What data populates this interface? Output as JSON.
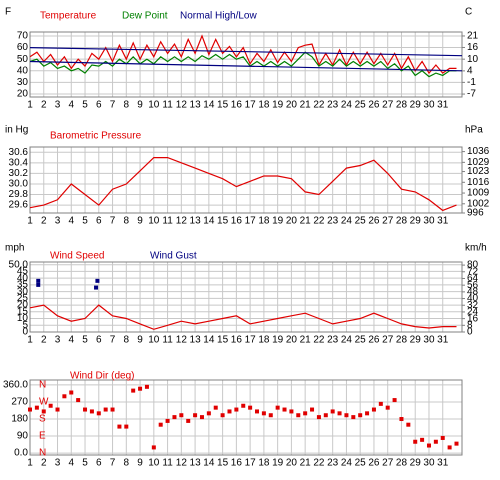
{
  "chart_data": [
    {
      "type": "line",
      "y_unit": "F",
      "y2_unit": "C",
      "xlim": [
        1,
        32.4
      ],
      "xticks": [
        1,
        2,
        3,
        4,
        5,
        6,
        7,
        8,
        9,
        10,
        11,
        12,
        13,
        14,
        15,
        16,
        17,
        18,
        19,
        20,
        21,
        22,
        23,
        24,
        25,
        26,
        27,
        28,
        29,
        30,
        31
      ],
      "ylim": [
        17.4,
        73.4
      ],
      "yticks": [
        20,
        30,
        40,
        50,
        60,
        70
      ],
      "y2lim": [
        -8.1,
        23.0
      ],
      "y2ticks": [
        {
          "value": -6.7,
          "label": "-7"
        },
        {
          "value": -1.1,
          "label": "-1"
        },
        {
          "value": 4.4,
          "label": "4"
        },
        {
          "value": 10,
          "label": "10"
        },
        {
          "value": 15.6,
          "label": "16"
        },
        {
          "value": 21.1,
          "label": "21"
        }
      ],
      "grid": true,
      "series": [
        {
          "name": "Temperature",
          "color": "#e00000",
          "x": [
            1,
            1.5,
            2,
            2.5,
            3,
            3.5,
            4,
            4.5,
            5,
            5.5,
            6,
            6.5,
            7,
            7.5,
            8,
            8.5,
            9,
            9.5,
            10,
            10.5,
            11,
            11.5,
            12,
            12.5,
            13,
            13.5,
            14,
            14.5,
            15,
            15.5,
            16,
            16.5,
            17,
            17.5,
            18,
            18.5,
            19,
            19.5,
            20,
            20.5,
            21,
            21.5,
            22,
            22.5,
            23,
            23.5,
            24,
            24.5,
            25,
            25.5,
            26,
            26.5,
            27,
            27.5,
            28,
            28.5,
            29,
            29.5,
            30,
            30.5,
            31,
            31.5,
            32
          ],
          "values": [
            52,
            56,
            48,
            54,
            45,
            52,
            42,
            50,
            44,
            55,
            50,
            60,
            48,
            62,
            50,
            64,
            50,
            62,
            52,
            65,
            55,
            63,
            52,
            67,
            55,
            70,
            54,
            67,
            55,
            61,
            52,
            60,
            46,
            55,
            48,
            58,
            47,
            56,
            48,
            60,
            62,
            63,
            45,
            55,
            45,
            58,
            45,
            56,
            46,
            56,
            46,
            55,
            45,
            55,
            42,
            52,
            40,
            48,
            38,
            45,
            38,
            42,
            42
          ]
        },
        {
          "name": "Dew Point",
          "color": "#008000",
          "x": [
            1,
            1.5,
            2,
            2.5,
            3,
            3.5,
            4,
            4.5,
            5,
            5.5,
            6,
            6.5,
            7,
            7.5,
            8,
            8.5,
            9,
            9.5,
            10,
            10.5,
            11,
            11.5,
            12,
            12.5,
            13,
            13.5,
            14,
            14.5,
            15,
            15.5,
            16,
            16.5,
            17,
            17.5,
            18,
            18.5,
            19,
            19.5,
            20,
            20.5,
            21,
            21.5,
            22,
            22.5,
            23,
            23.5,
            24,
            24.5,
            25,
            25.5,
            26,
            26.5,
            27,
            27.5,
            28,
            28.5,
            29,
            29.5,
            30,
            30.5,
            31,
            31.5,
            32
          ],
          "values": [
            48,
            50,
            44,
            47,
            42,
            44,
            40,
            42,
            38,
            45,
            44,
            48,
            44,
            50,
            46,
            52,
            46,
            50,
            46,
            52,
            48,
            52,
            48,
            52,
            48,
            53,
            50,
            54,
            50,
            54,
            50,
            52,
            44,
            48,
            44,
            48,
            44,
            48,
            44,
            50,
            56,
            52,
            44,
            48,
            44,
            50,
            44,
            48,
            44,
            48,
            44,
            48,
            42,
            46,
            40,
            44,
            36,
            40,
            35,
            38,
            36,
            40,
            40
          ]
        },
        {
          "name": "Normal High/Low",
          "color": "#000080",
          "x": [
            1,
            32.4
          ],
          "values": [
            60,
            53
          ],
          "low": [
            48,
            40
          ]
        }
      ]
    },
    {
      "type": "line",
      "y_unit": "in Hg",
      "y2_unit": "hPa",
      "xlim": [
        1,
        32.4
      ],
      "xticks": [
        1,
        2,
        3,
        4,
        5,
        6,
        7,
        8,
        9,
        10,
        11,
        12,
        13,
        14,
        15,
        16,
        17,
        18,
        19,
        20,
        21,
        22,
        23,
        24,
        25,
        26,
        27,
        28,
        29,
        30,
        31
      ],
      "ylim": [
        29.45,
        30.7
      ],
      "yticks": [
        29.6,
        29.8,
        {
          "value": 30,
          "label": "30.0"
        },
        30.2,
        30.4,
        30.6
      ],
      "y2lim": [
        996,
        1039
      ],
      "y2ticks": [
        996,
        1002,
        1009,
        1016,
        1023,
        1029,
        1036
      ],
      "grid": true,
      "series": [
        {
          "name": "Barometric Pressure",
          "color": "#e00000",
          "x": [
            1,
            2,
            3,
            4,
            5,
            6,
            7,
            8,
            9,
            10,
            11,
            12,
            13,
            14,
            15,
            16,
            17,
            18,
            19,
            20,
            21,
            22,
            23,
            24,
            25,
            26,
            27,
            28,
            29,
            30,
            31,
            32
          ],
          "values": [
            29.55,
            29.6,
            29.7,
            30.0,
            29.8,
            29.6,
            29.9,
            30.0,
            30.25,
            30.5,
            30.5,
            30.4,
            30.3,
            30.2,
            30.1,
            29.95,
            30.05,
            30.15,
            30.15,
            30.1,
            29.85,
            29.8,
            30.05,
            30.3,
            30.35,
            30.45,
            30.2,
            29.9,
            29.85,
            29.7,
            29.5,
            29.6
          ]
        }
      ]
    },
    {
      "type": "line",
      "y_unit": "mph",
      "y2_unit": "km/h",
      "xlim": [
        1,
        32.4
      ],
      "xticks": [
        1,
        2,
        3,
        4,
        5,
        6,
        7,
        8,
        9,
        10,
        11,
        12,
        13,
        14,
        15,
        16,
        17,
        18,
        19,
        20,
        21,
        22,
        23,
        24,
        25,
        26,
        27,
        28,
        29,
        30,
        31
      ],
      "ylim": [
        0,
        52
      ],
      "yticks": [
        0,
        5,
        10,
        15,
        20,
        25,
        30,
        35,
        40,
        45,
        {
          "value": 50,
          "label": "50.0"
        }
      ],
      "y2lim": [
        0,
        83.7
      ],
      "y2ticks": [
        0,
        8,
        16,
        24,
        32,
        40,
        48,
        56,
        64,
        72,
        80
      ],
      "grid": true,
      "series": [
        {
          "name": "Wind Speed",
          "color": "#e00000",
          "x": [
            1,
            2,
            3,
            4,
            5,
            6,
            7,
            8,
            9,
            10,
            11,
            12,
            13,
            14,
            15,
            16,
            17,
            18,
            19,
            20,
            21,
            22,
            23,
            24,
            25,
            26,
            27,
            28,
            29,
            30,
            31,
            32
          ],
          "values": [
            18,
            20,
            12,
            8,
            10,
            20,
            12,
            10,
            6,
            2,
            5,
            8,
            6,
            8,
            10,
            12,
            6,
            8,
            10,
            12,
            14,
            10,
            6,
            8,
            10,
            14,
            10,
            6,
            4,
            3,
            4,
            4
          ]
        },
        {
          "name": "Wind Gust",
          "color": "#000080",
          "style": "scatter",
          "x": [
            1.6,
            1.6,
            5.8,
            5.9
          ],
          "values": [
            35,
            38,
            33,
            38
          ]
        }
      ]
    },
    {
      "type": "scatter",
      "xlim": [
        1,
        32.4
      ],
      "xticks": [
        1,
        2,
        3,
        4,
        5,
        6,
        7,
        8,
        9,
        10,
        11,
        12,
        13,
        14,
        15,
        16,
        17,
        18,
        19,
        20,
        21,
        22,
        23,
        24,
        25,
        26,
        27,
        28,
        29,
        30,
        31
      ],
      "ylim": [
        -10,
        386
      ],
      "yticks": [
        {
          "value": 0,
          "label": "0.0"
        },
        90,
        180,
        270,
        {
          "value": 360,
          "label": "360.0"
        }
      ],
      "compass": [
        {
          "value": 360,
          "label": "N"
        },
        {
          "value": 270,
          "label": "W"
        },
        {
          "value": 180,
          "label": "S"
        },
        {
          "value": 90,
          "label": "E"
        },
        {
          "value": 0,
          "label": "N"
        }
      ],
      "grid": true,
      "series": [
        {
          "name": "Wind Dir (deg)",
          "color": "#e00000",
          "x": [
            1,
            1.5,
            2,
            2.5,
            3,
            3.5,
            4,
            4.5,
            5,
            5.5,
            6,
            6.5,
            7,
            7.5,
            8,
            8.5,
            9,
            9.5,
            10,
            10.5,
            11,
            11.5,
            12,
            12.5,
            13,
            13.5,
            14,
            14.5,
            15,
            15.5,
            16,
            16.5,
            17,
            17.5,
            18,
            18.5,
            19,
            19.5,
            20,
            20.5,
            21,
            21.5,
            22,
            22.5,
            23,
            23.5,
            24,
            24.5,
            25,
            25.5,
            26,
            26.5,
            27,
            27.5,
            28,
            28.5,
            29,
            29.5,
            30,
            30.5,
            31,
            31.5,
            32
          ],
          "values": [
            230,
            240,
            220,
            250,
            230,
            300,
            320,
            280,
            230,
            220,
            210,
            230,
            230,
            140,
            140,
            330,
            340,
            350,
            30,
            150,
            170,
            190,
            200,
            170,
            200,
            190,
            210,
            240,
            200,
            220,
            230,
            250,
            240,
            220,
            210,
            200,
            240,
            230,
            220,
            200,
            210,
            230,
            190,
            200,
            220,
            210,
            200,
            190,
            200,
            210,
            230,
            260,
            240,
            280,
            180,
            150,
            60,
            70,
            40,
            60,
            80,
            30,
            50
          ]
        }
      ]
    }
  ]
}
